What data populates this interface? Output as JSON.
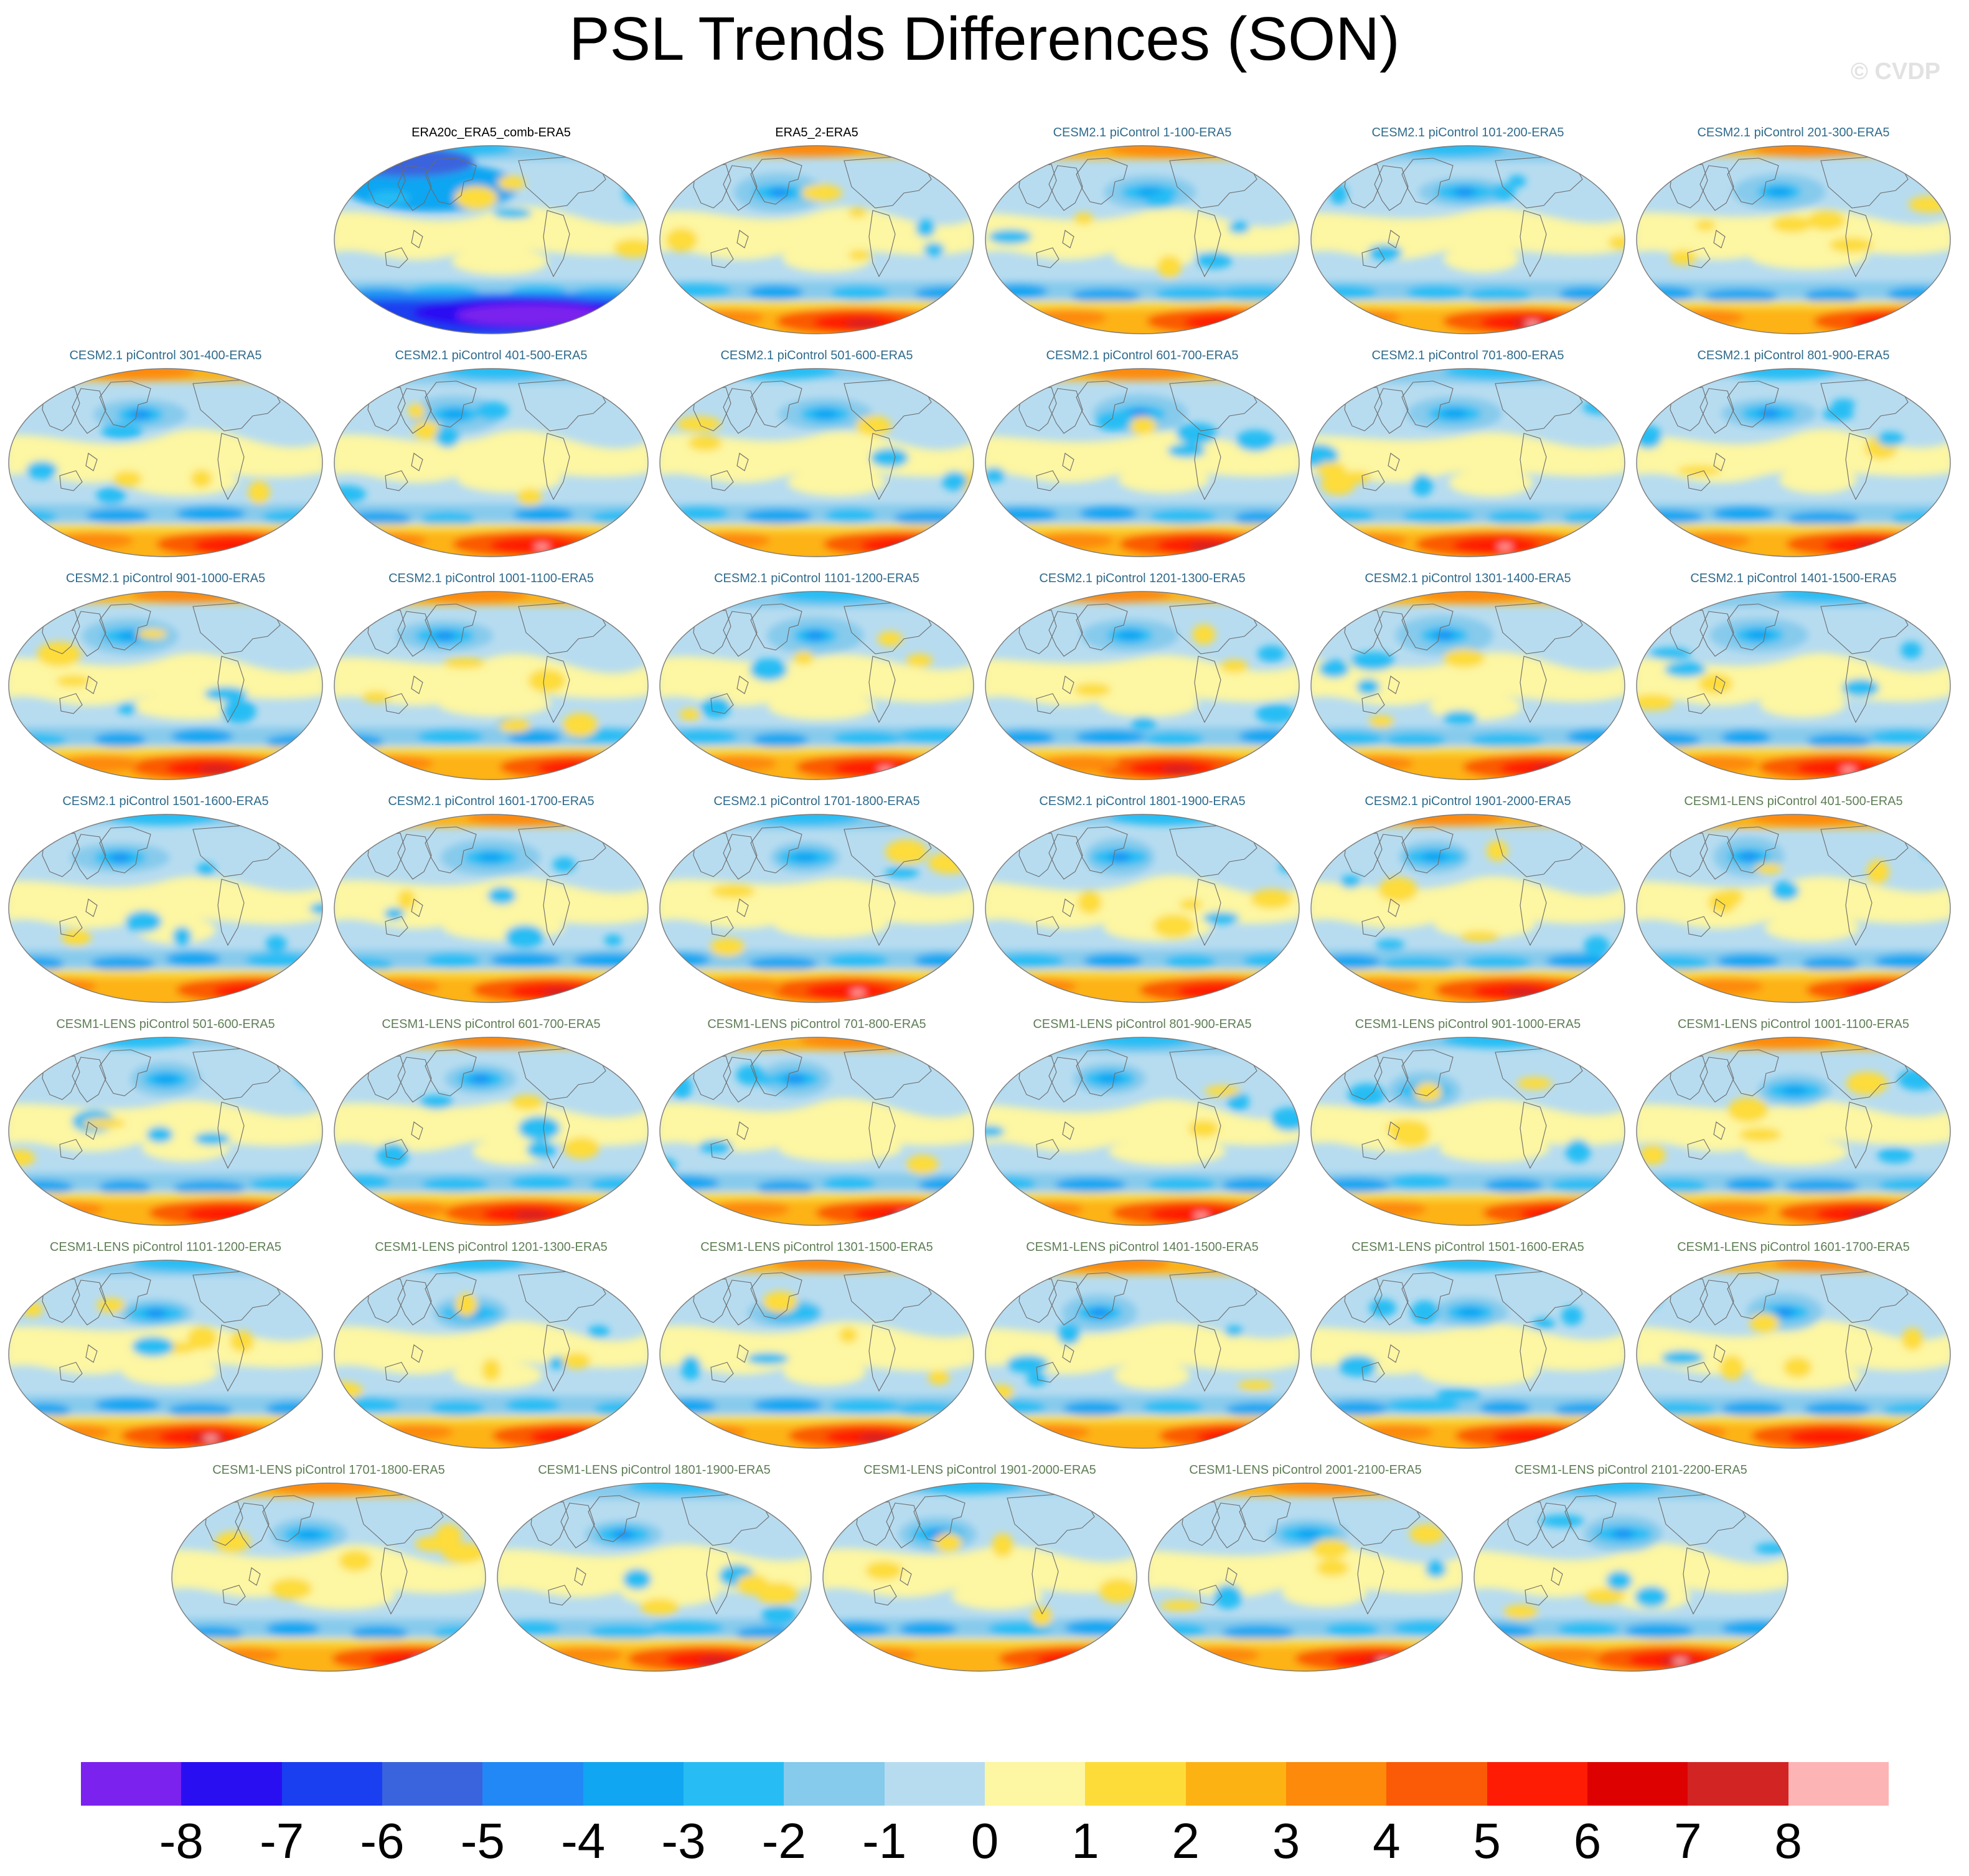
{
  "title": "PSL Trends Differences (SON)",
  "watermark": "© CVDP",
  "colors": {
    "obs_title": "#000000",
    "cesm2_title": "#2f6b8c",
    "cesm1_title": "#5e7e55",
    "coastline": "#6b6b6b",
    "ocean_base": "#b7dcf0"
  },
  "chart_data": {
    "type": "map-grid",
    "title": "PSL Trends Differences (SON)",
    "projection": "robinson",
    "panels": [
      {
        "label": "ERA20c_ERA5_comb-ERA5",
        "group": "obs",
        "pattern": 0
      },
      {
        "label": "ERA5_2-ERA5",
        "group": "obs",
        "pattern": 1
      },
      {
        "label": "CESM2.1 piControl 1-100-ERA5",
        "group": "cesm2",
        "pattern": 2
      },
      {
        "label": "CESM2.1 piControl 101-200-ERA5",
        "group": "cesm2",
        "pattern": 3
      },
      {
        "label": "CESM2.1 piControl 201-300-ERA5",
        "group": "cesm2",
        "pattern": 4
      },
      {
        "label": "CESM2.1 piControl 301-400-ERA5",
        "group": "cesm2",
        "pattern": 5
      },
      {
        "label": "CESM2.1 piControl 401-500-ERA5",
        "group": "cesm2",
        "pattern": 6
      },
      {
        "label": "CESM2.1 piControl 501-600-ERA5",
        "group": "cesm2",
        "pattern": 7
      },
      {
        "label": "CESM2.1 piControl 601-700-ERA5",
        "group": "cesm2",
        "pattern": 8
      },
      {
        "label": "CESM2.1 piControl 701-800-ERA5",
        "group": "cesm2",
        "pattern": 9
      },
      {
        "label": "CESM2.1 piControl 801-900-ERA5",
        "group": "cesm2",
        "pattern": 10
      },
      {
        "label": "CESM2.1 piControl 901-1000-ERA5",
        "group": "cesm2",
        "pattern": 11
      },
      {
        "label": "CESM2.1 piControl 1001-1100-ERA5",
        "group": "cesm2",
        "pattern": 12
      },
      {
        "label": "CESM2.1 piControl 1101-1200-ERA5",
        "group": "cesm2",
        "pattern": 13
      },
      {
        "label": "CESM2.1 piControl 1201-1300-ERA5",
        "group": "cesm2",
        "pattern": 14
      },
      {
        "label": "CESM2.1 piControl 1301-1400-ERA5",
        "group": "cesm2",
        "pattern": 15
      },
      {
        "label": "CESM2.1 piControl 1401-1500-ERA5",
        "group": "cesm2",
        "pattern": 16
      },
      {
        "label": "CESM2.1 piControl 1501-1600-ERA5",
        "group": "cesm2",
        "pattern": 17
      },
      {
        "label": "CESM2.1 piControl 1601-1700-ERA5",
        "group": "cesm2",
        "pattern": 18
      },
      {
        "label": "CESM2.1 piControl 1701-1800-ERA5",
        "group": "cesm2",
        "pattern": 19
      },
      {
        "label": "CESM2.1 piControl 1801-1900-ERA5",
        "group": "cesm2",
        "pattern": 20
      },
      {
        "label": "CESM2.1 piControl 1901-2000-ERA5",
        "group": "cesm2",
        "pattern": 21
      },
      {
        "label": "CESM1-LENS piControl 401-500-ERA5",
        "group": "cesm1",
        "pattern": 22
      },
      {
        "label": "CESM1-LENS piControl 501-600-ERA5",
        "group": "cesm1",
        "pattern": 23
      },
      {
        "label": "CESM1-LENS piControl 601-700-ERA5",
        "group": "cesm1",
        "pattern": 24
      },
      {
        "label": "CESM1-LENS piControl 701-800-ERA5",
        "group": "cesm1",
        "pattern": 25
      },
      {
        "label": "CESM1-LENS piControl 801-900-ERA5",
        "group": "cesm1",
        "pattern": 26
      },
      {
        "label": "CESM1-LENS piControl 901-1000-ERA5",
        "group": "cesm1",
        "pattern": 27
      },
      {
        "label": "CESM1-LENS piControl 1001-1100-ERA5",
        "group": "cesm1",
        "pattern": 28
      },
      {
        "label": "CESM1-LENS piControl 1101-1200-ERA5",
        "group": "cesm1",
        "pattern": 29
      },
      {
        "label": "CESM1-LENS piControl 1201-1300-ERA5",
        "group": "cesm1",
        "pattern": 30
      },
      {
        "label": "CESM1-LENS piControl 1301-1500-ERA5",
        "group": "cesm1",
        "pattern": 31
      },
      {
        "label": "CESM1-LENS piControl 1401-1500-ERA5",
        "group": "cesm1",
        "pattern": 32
      },
      {
        "label": "CESM1-LENS piControl 1501-1600-ERA5",
        "group": "cesm1",
        "pattern": 33
      },
      {
        "label": "CESM1-LENS piControl 1601-1700-ERA5",
        "group": "cesm1",
        "pattern": 34
      },
      {
        "label": "CESM1-LENS piControl 1701-1800-ERA5",
        "group": "cesm1",
        "pattern": 35
      },
      {
        "label": "CESM1-LENS piControl 1801-1900-ERA5",
        "group": "cesm1",
        "pattern": 36
      },
      {
        "label": "CESM1-LENS piControl 1901-2000-ERA5",
        "group": "cesm1",
        "pattern": 37
      },
      {
        "label": "CESM1-LENS piControl 2001-2100-ERA5",
        "group": "cesm1",
        "pattern": 38
      },
      {
        "label": "CESM1-LENS piControl 2101-2200-ERA5",
        "group": "cesm1",
        "pattern": 39
      }
    ],
    "colorbar": {
      "labels": [
        "-8",
        "-7",
        "-6",
        "-5",
        "-4",
        "-3",
        "-2",
        "-1",
        "0",
        "1",
        "2",
        "3",
        "4",
        "5",
        "6",
        "7",
        "8"
      ],
      "colors": [
        "#7b22ee",
        "#2a0ef2",
        "#1a3ff0",
        "#3a64de",
        "#2288f5",
        "#10a6f2",
        "#27bdf4",
        "#86caec",
        "#b7dcf0",
        "#fdf6a2",
        "#fddc3a",
        "#fdb213",
        "#fd8a0a",
        "#fb5a06",
        "#fe1c05",
        "#de0101",
        "#d32424",
        "#fdb4b4"
      ]
    }
  }
}
